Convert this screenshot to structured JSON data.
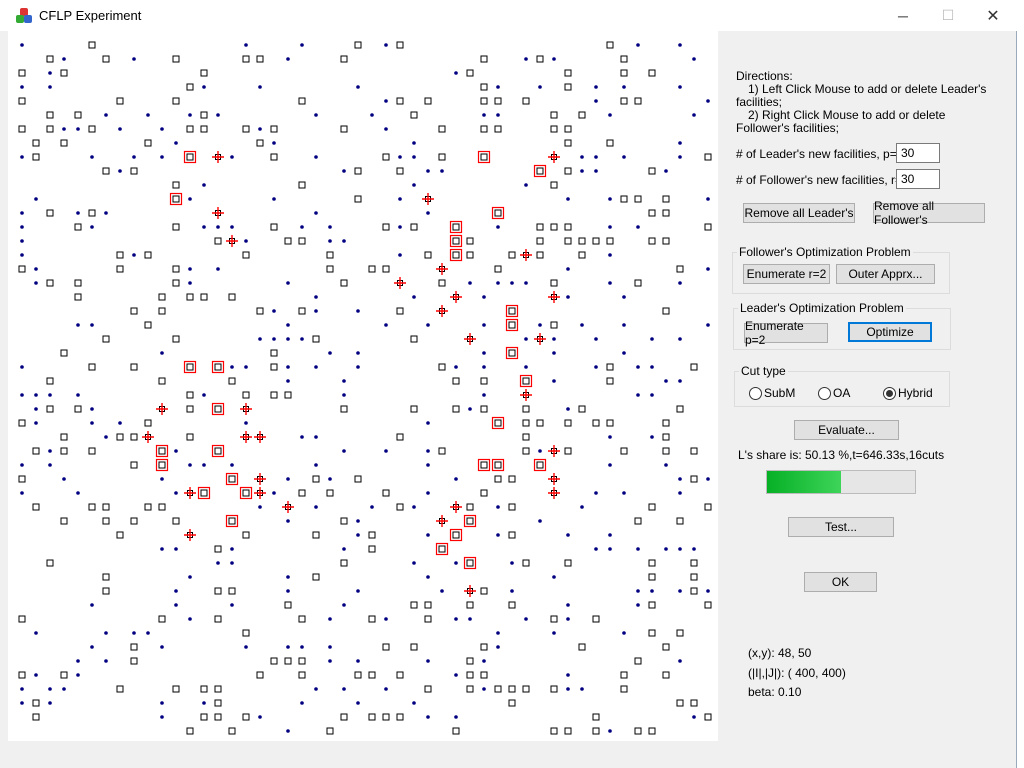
{
  "window": {
    "title": "CFLP Experiment",
    "minimize": "─",
    "maximize": "☐",
    "close": "✕"
  },
  "directions": {
    "heading": "Directions:",
    "line1": "1) Left Click Mouse to add or delete Leader's",
    "line1b": "facilities;",
    "line2": "2) Right Click Mouse to add or delete",
    "line2b": "Follower's facilities;"
  },
  "leader_count": {
    "label": "# of Leader's new facilities,   p=",
    "value": "30"
  },
  "follower_count": {
    "label": "# of Follower's new facilities, r=",
    "value": "30"
  },
  "buttons": {
    "remove_leader": "Remove all Leader's",
    "remove_follower": "Remove all Follower's",
    "enum_r": "Enumerate r=2",
    "outer": "Outer Apprx...",
    "enum_p": "Enumerate p=2",
    "optimize": "Optimize",
    "evaluate": "Evaluate...",
    "test": "Test...",
    "ok": "OK"
  },
  "follower_group": "Follower's Optimization Problem",
  "leader_group": "Leader's Optimization Problem",
  "cut_type": {
    "label": "Cut type",
    "options": [
      "SubM",
      "OA",
      "Hybrid"
    ],
    "selected": "Hybrid"
  },
  "status": "L's share is: 50.13 %,t=646.33s,16cuts",
  "progress_percent": 50,
  "readout": {
    "xy": "(x,y):   48,   50",
    "sizes": "(|I|,|J|): ( 400, 400)",
    "beta": "beta: 0.10"
  },
  "colors": {
    "leader": "#ff0000",
    "follower": "#ff0000",
    "customer": "#000080",
    "progress": "#06b025"
  },
  "grid": {
    "columns": 50,
    "rows": 50,
    "customers": 400,
    "candidates": 400
  },
  "leader_facilities": [
    [
      12,
      8
    ],
    [
      11,
      11
    ],
    [
      33,
      8
    ],
    [
      37,
      9
    ],
    [
      34,
      12
    ],
    [
      31,
      13
    ],
    [
      31,
      14
    ],
    [
      31,
      15
    ],
    [
      35,
      19
    ],
    [
      35,
      20
    ],
    [
      35,
      22
    ],
    [
      12,
      23
    ],
    [
      14,
      23
    ],
    [
      36,
      24
    ],
    [
      14,
      26
    ],
    [
      34,
      27
    ],
    [
      10,
      29
    ],
    [
      10,
      30
    ],
    [
      14,
      29
    ],
    [
      33,
      30
    ],
    [
      34,
      30
    ],
    [
      37,
      30
    ],
    [
      15,
      31
    ],
    [
      13,
      32
    ],
    [
      16,
      32
    ],
    [
      15,
      34
    ],
    [
      32,
      34
    ],
    [
      31,
      35
    ],
    [
      30,
      36
    ],
    [
      32,
      37
    ]
  ],
  "follower_facilities": [
    [
      14,
      8
    ],
    [
      38,
      8
    ],
    [
      14,
      12
    ],
    [
      29,
      11
    ],
    [
      15,
      14
    ],
    [
      36,
      15
    ],
    [
      30,
      16
    ],
    [
      27,
      17
    ],
    [
      31,
      18
    ],
    [
      38,
      18
    ],
    [
      30,
      19
    ],
    [
      32,
      21
    ],
    [
      37,
      21
    ],
    [
      36,
      25
    ],
    [
      10,
      26
    ],
    [
      16,
      26
    ],
    [
      9,
      28
    ],
    [
      16,
      28
    ],
    [
      17,
      28
    ],
    [
      38,
      29
    ],
    [
      17,
      31
    ],
    [
      38,
      31
    ],
    [
      12,
      32
    ],
    [
      17,
      32
    ],
    [
      38,
      32
    ],
    [
      19,
      33
    ],
    [
      31,
      33
    ],
    [
      30,
      34
    ],
    [
      12,
      35
    ],
    [
      32,
      39
    ]
  ]
}
